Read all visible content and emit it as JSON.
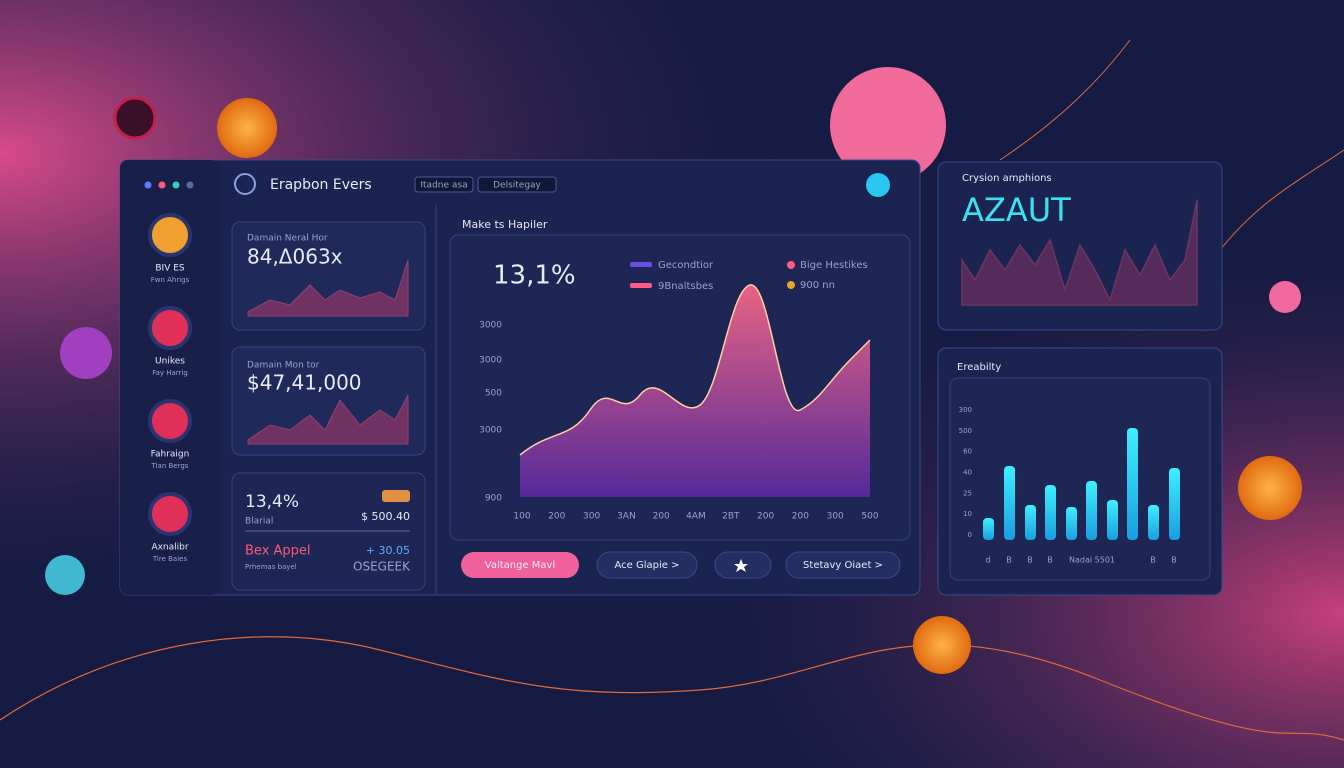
{
  "header": {
    "title": "Erapbon Evers",
    "tabs": [
      "Itadne asa",
      "Delsitegay"
    ]
  },
  "sidebar": [
    {
      "label": "BIV ES",
      "sub": "Fwn Ahrigs"
    },
    {
      "label": "Unikes",
      "sub": "Fay Harrig"
    },
    {
      "label": "Fahraign",
      "sub": "Tian Bergs"
    },
    {
      "label": "Axnalibr",
      "sub": "Tire Baies"
    }
  ],
  "cards": [
    {
      "title": "Damain Neral Hor",
      "value": "84,Δ063x"
    },
    {
      "title": "Damain Mon tor",
      "value": "$47,41,000"
    }
  ],
  "summary": {
    "value": "13,4%",
    "label": "Blarial",
    "amount": "$ 500.40",
    "name": "Bex Appel",
    "change": "+ 30.05",
    "sub": "Prhemas bayel",
    "code": "OSEGEEK"
  },
  "main_chart": {
    "title": "Make ts Hapiler",
    "value": "13,1%",
    "legend": [
      "Gecondtior",
      "9Bnaltsbes",
      "Bige Hestikes",
      "900 nn"
    ],
    "y_labels": [
      "3000",
      "3000",
      "500",
      "3000",
      "900"
    ],
    "x_labels": [
      "100",
      "200",
      "300",
      "3AN",
      "200",
      "4AM",
      "2BT",
      "200",
      "200",
      "300",
      "500"
    ]
  },
  "buttons": [
    "Valtange Mavl",
    "Ace Glapie >",
    "Stetavy Oiaet >"
  ],
  "top_panel": {
    "title": "Crysion amphions",
    "value": "AZAUT"
  },
  "bar_panel": {
    "title": "Ereabilty",
    "y_labels": [
      "300",
      "500",
      "60",
      "40",
      "25",
      "10",
      "0"
    ],
    "x_labels": [
      "d",
      "B",
      "B",
      "B",
      "Nadai 5501",
      "B",
      "B"
    ]
  }
}
